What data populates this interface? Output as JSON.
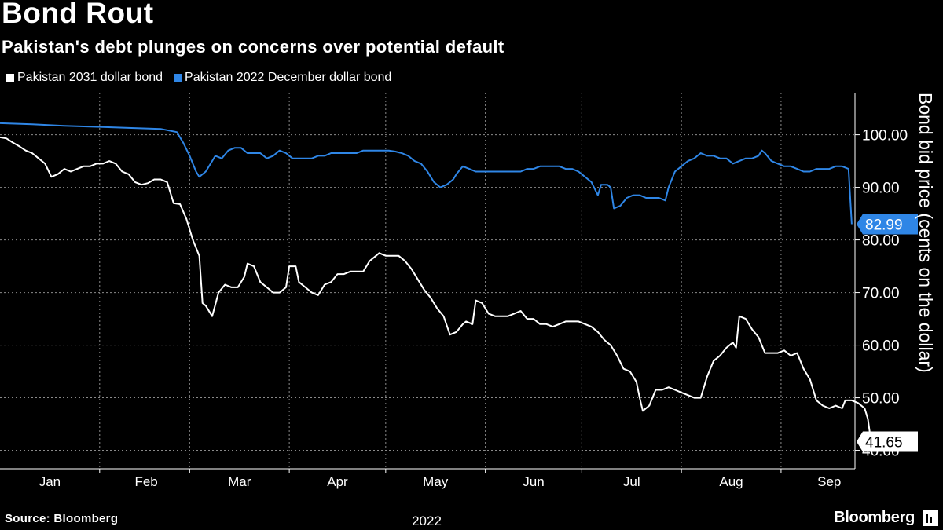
{
  "title": "Bond Rout",
  "subtitle": "Pakistan's debt plunges on concerns over potential default",
  "source": "Source: Bloomberg",
  "brand": "Bloomberg",
  "colors": {
    "background": "#000000",
    "series_2031": "#ffffff",
    "series_2022": "#2f86e6",
    "grid": "#8a8a8a"
  },
  "chart_data": {
    "type": "line",
    "title": "Bond Rout",
    "subtitle": "Pakistan's debt plunges on concerns over potential default",
    "xlabel": "2022",
    "ylabel": "Bond bid price (cents on the dollar)",
    "ylim": [
      36.5,
      108
    ],
    "xlim": [
      0,
      266
    ],
    "x_unit": "day of year 2022",
    "yticks": [
      40,
      50,
      60,
      70,
      80,
      90,
      100
    ],
    "ytick_labels": [
      "40.00",
      "50.00",
      "60.00",
      "70.00",
      "80.00",
      "90.00",
      "100.00"
    ],
    "xtick_labels": [
      {
        "label": "Jan",
        "pos": 15.5
      },
      {
        "label": "Feb",
        "pos": 45.5
      },
      {
        "label": "Mar",
        "pos": 74.5
      },
      {
        "label": "Apr",
        "pos": 105
      },
      {
        "label": "May",
        "pos": 135.5
      },
      {
        "label": "Jun",
        "pos": 166
      },
      {
        "label": "Jul",
        "pos": 196.5
      },
      {
        "label": "Aug",
        "pos": 227.5
      },
      {
        "label": "Sep",
        "pos": 258
      }
    ],
    "month_boundaries": [
      31,
      59,
      90,
      120,
      151,
      181,
      212,
      243
    ],
    "grid": true,
    "legend_position": "top-left",
    "series": [
      {
        "name": "Pakistan 2031 dollar bond",
        "color": "#ffffff",
        "last_label": "41.65",
        "points": [
          [
            0,
            99.5
          ],
          [
            2,
            99.3
          ],
          [
            4,
            98.5
          ],
          [
            6,
            97.8
          ],
          [
            8,
            97.0
          ],
          [
            10,
            96.5
          ],
          [
            12,
            95.5
          ],
          [
            14,
            94.5
          ],
          [
            16,
            92.0
          ],
          [
            18,
            92.5
          ],
          [
            20,
            93.5
          ],
          [
            22,
            93.0
          ],
          [
            24,
            93.5
          ],
          [
            26,
            94.0
          ],
          [
            28,
            94.0
          ],
          [
            30,
            94.5
          ],
          [
            32,
            94.5
          ],
          [
            34,
            95.0
          ],
          [
            36,
            94.5
          ],
          [
            38,
            93.0
          ],
          [
            40,
            92.5
          ],
          [
            42,
            91.0
          ],
          [
            44,
            90.5
          ],
          [
            46,
            90.8
          ],
          [
            48,
            91.5
          ],
          [
            50,
            91.5
          ],
          [
            52,
            91.0
          ],
          [
            54,
            87.0
          ],
          [
            56,
            86.8
          ],
          [
            58,
            84.0
          ],
          [
            60,
            80.0
          ],
          [
            62,
            77.0
          ],
          [
            63,
            68.0
          ],
          [
            64,
            67.5
          ],
          [
            66,
            65.5
          ],
          [
            68,
            70.0
          ],
          [
            70,
            71.5
          ],
          [
            72,
            71.0
          ],
          [
            74,
            71.0
          ],
          [
            76,
            73.0
          ],
          [
            77,
            75.5
          ],
          [
            79,
            75.0
          ],
          [
            81,
            72.0
          ],
          [
            83,
            71.0
          ],
          [
            85,
            70.0
          ],
          [
            87,
            70.0
          ],
          [
            89,
            71.0
          ],
          [
            90,
            75.0
          ],
          [
            92,
            75.0
          ],
          [
            93,
            72.0
          ],
          [
            95,
            71.0
          ],
          [
            97,
            70.0
          ],
          [
            99,
            69.5
          ],
          [
            101,
            71.5
          ],
          [
            103,
            72.0
          ],
          [
            105,
            73.5
          ],
          [
            107,
            73.5
          ],
          [
            109,
            74.0
          ],
          [
            111,
            74.0
          ],
          [
            113,
            74.0
          ],
          [
            115,
            76.0
          ],
          [
            117,
            77.0
          ],
          [
            118,
            77.5
          ],
          [
            120,
            77.0
          ],
          [
            122,
            77.0
          ],
          [
            124,
            77.0
          ],
          [
            126,
            76.0
          ],
          [
            128,
            74.5
          ],
          [
            130,
            72.5
          ],
          [
            132,
            70.5
          ],
          [
            134,
            69.0
          ],
          [
            136,
            67.0
          ],
          [
            138,
            65.5
          ],
          [
            140,
            62.0
          ],
          [
            142,
            62.5
          ],
          [
            144,
            64.0
          ],
          [
            145,
            64.5
          ],
          [
            147,
            64.0
          ],
          [
            148,
            68.5
          ],
          [
            150,
            68.0
          ],
          [
            152,
            66.0
          ],
          [
            154,
            65.5
          ],
          [
            156,
            65.5
          ],
          [
            158,
            65.5
          ],
          [
            160,
            66.0
          ],
          [
            162,
            66.5
          ],
          [
            164,
            65.0
          ],
          [
            166,
            65.0
          ],
          [
            168,
            64.0
          ],
          [
            170,
            64.0
          ],
          [
            172,
            63.5
          ],
          [
            174,
            64.0
          ],
          [
            176,
            64.5
          ],
          [
            178,
            64.5
          ],
          [
            180,
            64.5
          ],
          [
            182,
            64.0
          ],
          [
            184,
            63.5
          ],
          [
            186,
            62.5
          ],
          [
            188,
            61.0
          ],
          [
            190,
            60.0
          ],
          [
            192,
            58.0
          ],
          [
            194,
            55.5
          ],
          [
            196,
            55.0
          ],
          [
            198,
            53.0
          ],
          [
            199,
            50.0
          ],
          [
            200,
            47.5
          ],
          [
            202,
            48.5
          ],
          [
            204,
            51.5
          ],
          [
            206,
            51.5
          ],
          [
            208,
            52.0
          ],
          [
            210,
            51.5
          ],
          [
            212,
            51.0
          ],
          [
            214,
            50.5
          ],
          [
            216,
            50.0
          ],
          [
            218,
            50.0
          ],
          [
            220,
            54.0
          ],
          [
            222,
            57.0
          ],
          [
            224,
            58.0
          ],
          [
            226,
            59.5
          ],
          [
            228,
            60.5
          ],
          [
            229,
            59.5
          ],
          [
            230,
            65.5
          ],
          [
            232,
            65.0
          ],
          [
            234,
            63.0
          ],
          [
            236,
            61.5
          ],
          [
            238,
            58.5
          ],
          [
            240,
            58.5
          ],
          [
            242,
            58.5
          ],
          [
            244,
            59.0
          ],
          [
            246,
            58.0
          ],
          [
            248,
            58.5
          ],
          [
            250,
            55.5
          ],
          [
            252,
            53.5
          ],
          [
            254,
            49.5
          ],
          [
            256,
            48.5
          ],
          [
            258,
            48.0
          ],
          [
            260,
            48.5
          ],
          [
            262,
            48.0
          ],
          [
            263,
            49.5
          ],
          [
            265,
            49.5
          ],
          [
            267,
            49.0
          ],
          [
            269,
            48.0
          ],
          [
            270,
            46.0
          ],
          [
            271,
            41.65
          ]
        ]
      },
      {
        "name": "Pakistan 2022 December dollar bond",
        "color": "#2f86e6",
        "last_label": "82.99",
        "points": [
          [
            0,
            102.2
          ],
          [
            10,
            102.0
          ],
          [
            20,
            101.7
          ],
          [
            30,
            101.5
          ],
          [
            40,
            101.3
          ],
          [
            50,
            101.1
          ],
          [
            55,
            100.5
          ],
          [
            57,
            98.5
          ],
          [
            59,
            96.0
          ],
          [
            61,
            93.0
          ],
          [
            62,
            92.0
          ],
          [
            64,
            93.0
          ],
          [
            66,
            95.0
          ],
          [
            67,
            96.0
          ],
          [
            69,
            95.5
          ],
          [
            71,
            97.0
          ],
          [
            73,
            97.5
          ],
          [
            75,
            97.5
          ],
          [
            77,
            96.5
          ],
          [
            79,
            96.5
          ],
          [
            81,
            96.5
          ],
          [
            83,
            95.5
          ],
          [
            85,
            96.0
          ],
          [
            87,
            97.0
          ],
          [
            89,
            96.5
          ],
          [
            91,
            95.5
          ],
          [
            93,
            95.5
          ],
          [
            95,
            95.5
          ],
          [
            97,
            95.5
          ],
          [
            99,
            96.0
          ],
          [
            101,
            96.0
          ],
          [
            103,
            96.5
          ],
          [
            105,
            96.5
          ],
          [
            107,
            96.5
          ],
          [
            109,
            96.5
          ],
          [
            111,
            96.5
          ],
          [
            113,
            97.0
          ],
          [
            115,
            97.0
          ],
          [
            117,
            97.0
          ],
          [
            119,
            97.0
          ],
          [
            121,
            97.0
          ],
          [
            123,
            96.8
          ],
          [
            125,
            96.5
          ],
          [
            127,
            96.0
          ],
          [
            129,
            95.0
          ],
          [
            131,
            94.5
          ],
          [
            133,
            93.0
          ],
          [
            135,
            91.0
          ],
          [
            137,
            90.0
          ],
          [
            139,
            90.5
          ],
          [
            141,
            91.5
          ],
          [
            142,
            92.5
          ],
          [
            144,
            94.0
          ],
          [
            146,
            93.5
          ],
          [
            148,
            93.0
          ],
          [
            150,
            93.0
          ],
          [
            152,
            93.0
          ],
          [
            154,
            93.0
          ],
          [
            156,
            93.0
          ],
          [
            158,
            93.0
          ],
          [
            160,
            93.0
          ],
          [
            162,
            93.0
          ],
          [
            164,
            93.5
          ],
          [
            166,
            93.5
          ],
          [
            168,
            94.0
          ],
          [
            170,
            94.0
          ],
          [
            172,
            94.0
          ],
          [
            174,
            94.0
          ],
          [
            176,
            93.5
          ],
          [
            178,
            93.5
          ],
          [
            180,
            93.0
          ],
          [
            182,
            92.0
          ],
          [
            184,
            91.0
          ],
          [
            186,
            88.5
          ],
          [
            187,
            90.5
          ],
          [
            189,
            90.5
          ],
          [
            190,
            90.0
          ],
          [
            191,
            86.0
          ],
          [
            193,
            86.5
          ],
          [
            195,
            88.0
          ],
          [
            197,
            88.5
          ],
          [
            199,
            88.5
          ],
          [
            201,
            88.0
          ],
          [
            203,
            88.0
          ],
          [
            205,
            88.0
          ],
          [
            207,
            87.5
          ],
          [
            208,
            90.0
          ],
          [
            210,
            93.0
          ],
          [
            212,
            94.0
          ],
          [
            214,
            95.0
          ],
          [
            216,
            95.5
          ],
          [
            218,
            96.5
          ],
          [
            220,
            96.0
          ],
          [
            222,
            96.0
          ],
          [
            224,
            95.5
          ],
          [
            226,
            95.5
          ],
          [
            228,
            94.5
          ],
          [
            230,
            95.0
          ],
          [
            232,
            95.5
          ],
          [
            234,
            95.5
          ],
          [
            236,
            96.0
          ],
          [
            237,
            97.0
          ],
          [
            238,
            96.5
          ],
          [
            240,
            95.0
          ],
          [
            242,
            94.5
          ],
          [
            244,
            94.0
          ],
          [
            246,
            94.0
          ],
          [
            248,
            93.5
          ],
          [
            250,
            93.0
          ],
          [
            252,
            93.0
          ],
          [
            254,
            93.5
          ],
          [
            256,
            93.5
          ],
          [
            258,
            93.5
          ],
          [
            260,
            94.0
          ],
          [
            262,
            94.0
          ],
          [
            264,
            93.5
          ],
          [
            265,
            83.0
          ]
        ]
      }
    ]
  }
}
